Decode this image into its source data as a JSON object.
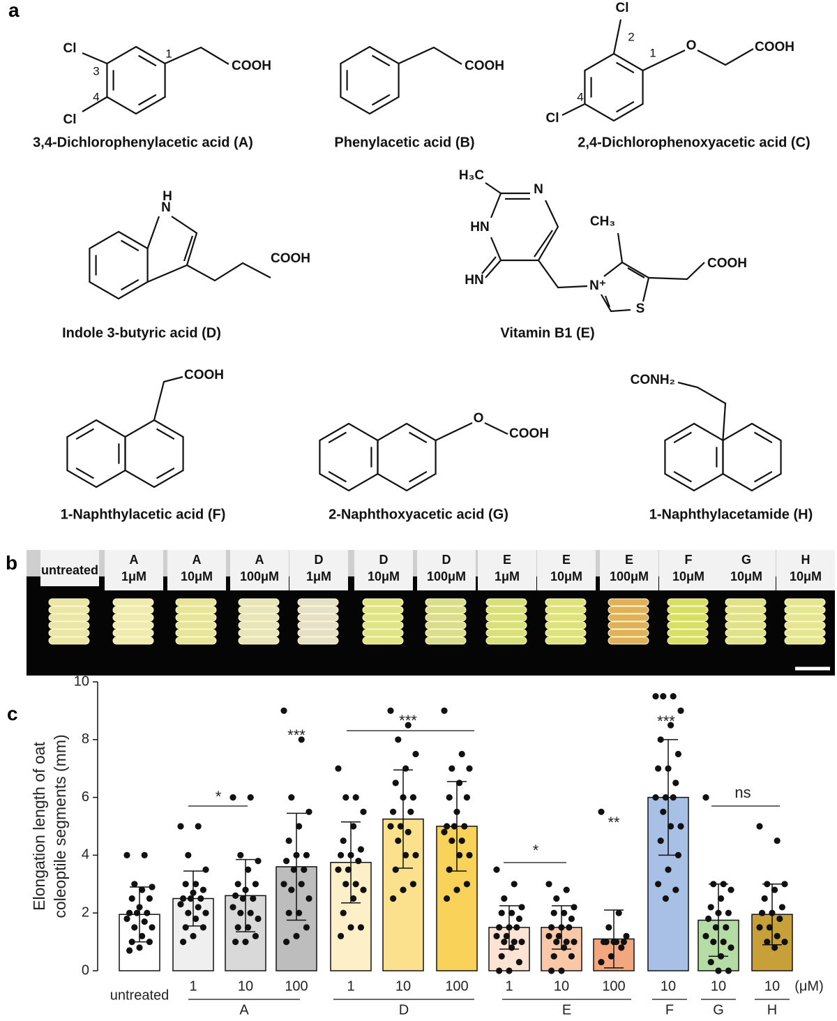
{
  "panel_labels": [
    "a",
    "b",
    "c"
  ],
  "structures": [
    {
      "name": "3,4-Dichlorophenylacetic acid (A)",
      "labels": [
        "Cl",
        "3",
        "4",
        "Cl",
        "1",
        "COOH"
      ]
    },
    {
      "name": "Phenylacetic acid (B)",
      "labels": [
        "COOH"
      ]
    },
    {
      "name": "2,4-Dichlorophenoxyacetic acid (C)",
      "labels": [
        "Cl",
        "2",
        "1",
        "O",
        "COOH",
        "4",
        "Cl"
      ]
    },
    {
      "name": "Indole 3-butyric acid (D)",
      "labels": [
        "H",
        "N",
        "COOH"
      ]
    },
    {
      "name": "Vitamin B1 (E)",
      "labels": [
        "H₃C",
        "N",
        "HN",
        "HN",
        "CH₃",
        "N⁺",
        "S",
        "COOH"
      ]
    },
    {
      "name": "1-Naphthylacetic acid (F)",
      "labels": [
        "COOH"
      ]
    },
    {
      "name": "2-Naphthoxyacetic acid (G)",
      "labels": [
        "O",
        "COOH"
      ]
    },
    {
      "name": "1-Naphthylacetamide (H)",
      "labels": [
        "CONH₂"
      ]
    }
  ],
  "photo_labels": [
    [
      "untreated"
    ],
    [
      "A",
      "1μM"
    ],
    [
      "A",
      "10μM"
    ],
    [
      "A",
      "100μM"
    ],
    [
      "D",
      "1μM"
    ],
    [
      "D",
      "10μM"
    ],
    [
      "D",
      "100μM"
    ],
    [
      "E",
      "1μM"
    ],
    [
      "E",
      "10μM"
    ],
    [
      "E",
      "100μM"
    ],
    [
      "F",
      "10μM"
    ],
    [
      "G",
      "10μM"
    ],
    [
      "H",
      "10μM"
    ]
  ],
  "chart_data": {
    "type": "bar",
    "y_label": [
      "Elongation length of oat",
      "coleoptile segments (mm)"
    ],
    "categories": [
      "untreated",
      "1",
      "10",
      "100",
      "1",
      "10",
      "100",
      "1",
      "10",
      "100",
      "10",
      "10",
      "10"
    ],
    "groups": [
      "A",
      "D",
      "E",
      "F",
      "G",
      "H"
    ],
    "unit": "(μM)",
    "values": [
      1.95,
      2.5,
      2.6,
      3.6,
      3.75,
      5.25,
      5.0,
      1.5,
      1.5,
      1.1,
      6.0,
      1.75,
      1.95
    ],
    "errors": [
      0.95,
      0.95,
      1.25,
      1.85,
      1.4,
      1.7,
      1.55,
      0.75,
      0.75,
      1.0,
      2.0,
      1.25,
      1.05
    ],
    "colors": [
      "#ffffff",
      "#efefef",
      "#d9d9d9",
      "#bdbdbd",
      "#fdf0c8",
      "#fbe08e",
      "#f9d25a",
      "#fde3d3",
      "#f9c8a8",
      "#f2a77f",
      "#a9c0e6",
      "#b5dca5",
      "#c8a03a"
    ],
    "points": [
      [
        4,
        4,
        3,
        2.9,
        2.8,
        2.5,
        2.5,
        2.2,
        2,
        2,
        2,
        1.8,
        1.7,
        1.5,
        1.5,
        1.2,
        1,
        1,
        0.8,
        0.7
      ],
      [
        5,
        5,
        4,
        3.5,
        3,
        3,
        2.8,
        2.7,
        2.5,
        2.5,
        2.5,
        2.3,
        2.2,
        2,
        2,
        1.8,
        1.5,
        1.5,
        1.2,
        1
      ],
      [
        6,
        6,
        4,
        3.8,
        3.5,
        3,
        3,
        2.8,
        2.6,
        2.5,
        2.5,
        2.2,
        2,
        2,
        1.8,
        1.5,
        1.5,
        1.2,
        1,
        1
      ],
      [
        9,
        8,
        6,
        5.5,
        5,
        4.5,
        4,
        4,
        3.8,
        3.5,
        3.5,
        3,
        3,
        2.8,
        2.5,
        2,
        2,
        1.5,
        1.2,
        1
      ],
      [
        7,
        6,
        6,
        5.5,
        5,
        4.5,
        4.2,
        4,
        4,
        3.8,
        3.5,
        3.5,
        3,
        3,
        2.8,
        2.5,
        2,
        1.5,
        1.5,
        1.2
      ],
      [
        9,
        8.5,
        8,
        7.5,
        7,
        6.5,
        6,
        6,
        5.5,
        5.5,
        5,
        5,
        4.8,
        4.5,
        4,
        4,
        3.5,
        3,
        2.8,
        2.5
      ],
      [
        9,
        7.5,
        7,
        7,
        6.5,
        6,
        6,
        5.5,
        5,
        5,
        5,
        4.8,
        4.5,
        4.5,
        4,
        4,
        3.5,
        3,
        2.8,
        2.5
      ],
      [
        3.5,
        3,
        2.5,
        2.2,
        2,
        2,
        1.8,
        1.5,
        1.5,
        1.5,
        1.2,
        1.2,
        1,
        1,
        1,
        0.8,
        0.5,
        0.3,
        0,
        0
      ],
      [
        3,
        2.8,
        2.5,
        2.2,
        2,
        2,
        1.8,
        1.5,
        1.5,
        1.5,
        1.2,
        1.2,
        1,
        1,
        1,
        0.8,
        0.5,
        0.5,
        0,
        0
      ],
      [
        5.5,
        2,
        1.5,
        1.2,
        1,
        1,
        1,
        1,
        1,
        0.8,
        0.5,
        0.3
      ],
      [
        9.5,
        9.5,
        9.5,
        9,
        8.5,
        8,
        7.5,
        7,
        7,
        6.5,
        6,
        6,
        6,
        5.5,
        5,
        5,
        4.5,
        4,
        3.5,
        3,
        2.8,
        2.5
      ],
      [
        6,
        3,
        3,
        2.8,
        2.5,
        2.2,
        2,
        2,
        1.8,
        1.5,
        1.5,
        1.2,
        1,
        1,
        0.8,
        0.5,
        0.3,
        0,
        0
      ],
      [
        5,
        4.5,
        3,
        3,
        2.8,
        2.5,
        2.2,
        2,
        2,
        1.8,
        1.5,
        1.5,
        1.2,
        1,
        1,
        0.8
      ]
    ],
    "annotations": [
      "*",
      "***",
      "***",
      "*",
      "**",
      "***",
      "ns"
    ],
    "ylim": [
      0,
      10
    ],
    "yticks": [
      0,
      2,
      4,
      6,
      8,
      10
    ]
  }
}
